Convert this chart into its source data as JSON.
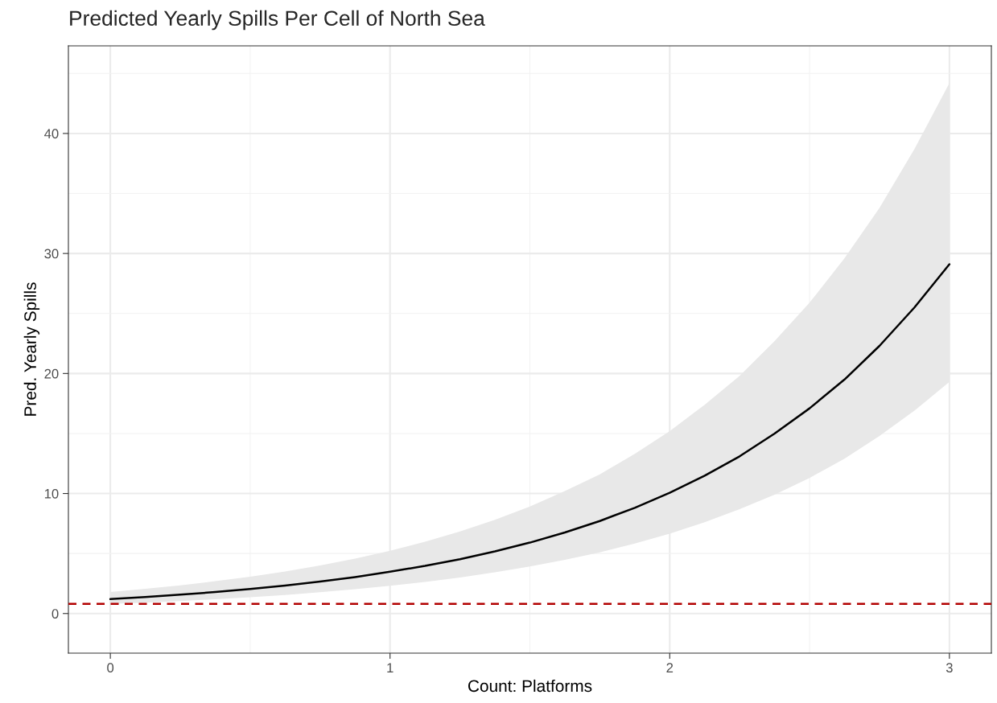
{
  "chart_data": {
    "type": "line",
    "title": "Predicted Yearly Spills Per Cell of North Sea",
    "xlabel": "Count: Platforms",
    "ylabel": "Pred. Yearly Spills",
    "x": [
      0,
      0.125,
      0.25,
      0.375,
      0.5,
      0.625,
      0.75,
      0.875,
      1,
      1.125,
      1.25,
      1.375,
      1.5,
      1.625,
      1.75,
      1.875,
      2,
      2.125,
      2.25,
      2.375,
      2.5,
      2.625,
      2.75,
      2.875,
      3
    ],
    "series": [
      {
        "color": "#000000",
        "values": [
          1.2,
          1.37,
          1.57,
          1.79,
          2.04,
          2.33,
          2.66,
          3.04,
          3.48,
          3.97,
          4.53,
          5.18,
          5.91,
          6.75,
          7.71,
          8.81,
          10.06,
          11.49,
          13.1,
          15.0,
          17.1,
          19.5,
          22.3,
          25.5,
          29.1
        ],
        "upper": [
          1.8,
          2.06,
          2.35,
          2.69,
          3.07,
          3.51,
          4.0,
          4.58,
          5.23,
          5.98,
          6.83,
          7.81,
          8.92,
          10.2,
          11.6,
          13.3,
          15.2,
          17.4,
          19.8,
          22.7,
          25.9,
          29.6,
          33.8,
          38.7,
          44.2
        ],
        "lower": [
          0.8,
          0.91,
          1.04,
          1.19,
          1.36,
          1.55,
          1.77,
          2.02,
          2.31,
          2.63,
          3.0,
          3.43,
          3.92,
          4.47,
          5.1,
          5.83,
          6.66,
          7.6,
          8.7,
          9.9,
          11.3,
          12.9,
          14.8,
          16.9,
          19.3
        ]
      }
    ],
    "xlim": [
      -0.15,
      3.15
    ],
    "ylim": [
      -3.3,
      47.3
    ],
    "xticks": [
      0,
      1,
      2,
      3
    ],
    "yticks": [
      0,
      10,
      20,
      30,
      40
    ],
    "ref_lines": [
      {
        "axis": "y",
        "value": 0.8,
        "color": "#b20000",
        "line_style": "dashed"
      }
    ],
    "grid": true,
    "legend": false,
    "marker": "none",
    "line_style": "solid"
  }
}
